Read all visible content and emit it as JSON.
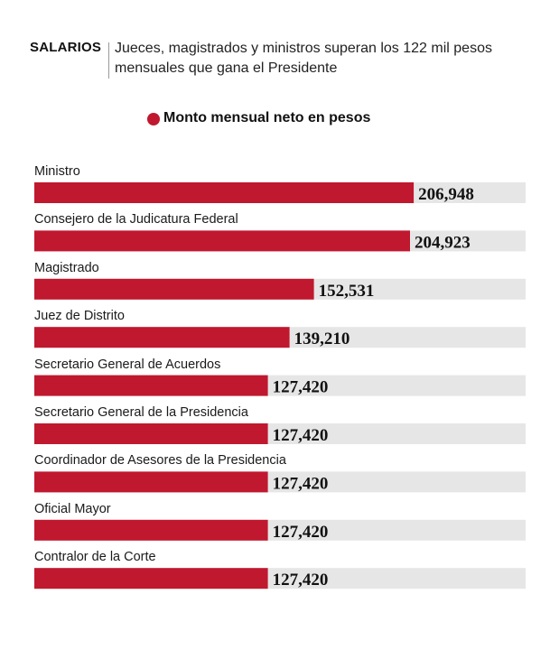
{
  "header": {
    "kicker": "SALARIOS",
    "headline": "Jueces, magistrados y ministros superan los 122 mil pesos mensuales que gana el Presidente"
  },
  "colors": {
    "bar": "#c0182f",
    "track": "#e6e6e6",
    "text": "#1a1a1a"
  },
  "chart_data": {
    "type": "bar",
    "orientation": "horizontal",
    "legend": "Monto mensual neto en pesos",
    "categories": [
      "Ministro",
      "Consejero de la Judicatura Federal",
      "Magistrado",
      "Juez de Distrito",
      "Secretario General de Acuerdos",
      "Secretario General de la Presidencia",
      "Coordinador de Asesores de la Presidencia",
      "Oficial Mayor",
      "Contralor de la Corte"
    ],
    "values": [
      206948,
      204923,
      152531,
      139210,
      127420,
      127420,
      127420,
      127420,
      127420
    ],
    "value_labels": [
      "206,948",
      "204,923",
      "152,531",
      "139,210",
      "127,420",
      "127,420",
      "127,420",
      "127,420",
      "127,420"
    ],
    "xlim": [
      0,
      268000
    ]
  }
}
